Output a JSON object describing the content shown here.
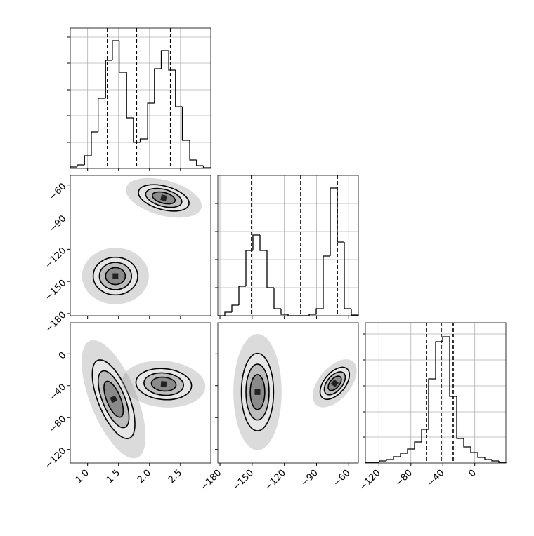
{
  "chart_data": {
    "type": "corner",
    "params": [
      {
        "lim": [
          0.72,
          2.99
        ],
        "ticks": [
          {
            "value": 1,
            "label": "1.0"
          },
          1.5,
          {
            "value": 2,
            "label": "2.0"
          },
          2.5
        ]
      },
      {
        "lim": [
          -182,
          -51
        ],
        "ticks": [
          {
            "value": -180,
            "label": "−180"
          },
          {
            "value": -150,
            "label": "−150"
          },
          {
            "value": -120,
            "label": "−120"
          },
          {
            "value": -90,
            "label": "−90"
          },
          {
            "value": -60,
            "label": "−60"
          }
        ]
      },
      {
        "lim": [
          -137,
          39
        ],
        "ticks": [
          {
            "value": -120,
            "label": "−120"
          },
          {
            "value": -80,
            "label": "−80"
          },
          {
            "value": -40,
            "label": "−40"
          },
          0
        ]
      }
    ],
    "histograms": [
      {
        "param": 0,
        "grid": true,
        "color": "#000000",
        "ylim": [
          0,
          200
        ],
        "yticks": [
          37,
          75,
          112,
          150,
          187
        ],
        "bins": [
          0.72,
          0.83,
          0.95,
          1.06,
          1.17,
          1.29,
          1.4,
          1.51,
          1.63,
          1.74,
          1.85,
          1.97,
          2.08,
          2.19,
          2.31,
          2.42,
          2.53,
          2.65,
          2.76,
          2.87,
          2.99
        ],
        "counts": [
          2,
          5,
          18,
          52,
          100,
          154,
          182,
          137,
          72,
          37,
          42,
          93,
          142,
          168,
          140,
          88,
          40,
          12,
          4,
          1
        ],
        "quantiles": [
          1.32,
          1.79,
          2.34
        ]
      },
      {
        "param": 1,
        "grid": true,
        "color": "#000000",
        "ylim": [
          0,
          200
        ],
        "yticks": [
          40,
          80,
          120,
          160
        ],
        "bins": [
          -182,
          -175.45,
          -168.9,
          -162.35,
          -155.8,
          -149.25,
          -142.7,
          -136.15,
          -129.6,
          -123.05,
          -116.5,
          -109.95,
          -103.4,
          -96.85,
          -90.3,
          -83.75,
          -77.2,
          -70.65,
          -64.1,
          -57.55,
          -51
        ],
        "counts": [
          0,
          5,
          15,
          42,
          93,
          115,
          93,
          40,
          10,
          2,
          0,
          0,
          0,
          2,
          10,
          85,
          182,
          105,
          10,
          1
        ],
        "quantiles": [
          -150.6,
          -104.7,
          -70.6
        ]
      },
      {
        "param": 2,
        "grid": true,
        "color": "#000000",
        "ylim": [
          0,
          200
        ],
        "yticks": [
          37,
          73,
          110,
          147,
          184
        ],
        "bins": [
          -137,
          -128.2,
          -119.4,
          -110.6,
          -101.8,
          -93,
          -84.2,
          -75.4,
          -66.6,
          -57.8,
          -49,
          -40.2,
          -31.4,
          -22.6,
          -13.8,
          -5,
          3.8,
          12.6,
          21.4,
          30.2,
          39
        ],
        "counts": [
          1,
          1,
          3,
          5,
          9,
          14,
          20,
          30,
          48,
          120,
          173,
          180,
          95,
          35,
          23,
          15,
          8,
          5,
          3,
          1
        ],
        "quantiles": [
          -60.4,
          -42,
          -27
        ]
      }
    ],
    "pairs": [
      {
        "x": 0,
        "y": 1,
        "contours": [
          {
            "center": [
              1.45,
              -145
            ],
            "angle": 0,
            "levels": [
              [
                0.36,
                17.6
              ],
              [
                0.26,
                12.7
              ],
              [
                0.16,
                7.9
              ]
            ]
          },
          {
            "center": [
              2.23,
              -72
            ],
            "angle": 15,
            "levels": [
              [
                0.42,
                11
              ],
              [
                0.3,
                7.9
              ],
              [
                0.19,
                5
              ]
            ]
          }
        ]
      },
      {
        "x": 0,
        "y": 2,
        "contours": [
          {
            "center": [
              1.42,
              -57
            ],
            "angle": 68,
            "levels": [
              [
                0.68,
                19.4
              ],
              [
                0.49,
                14
              ],
              [
                0.31,
                8.7
              ]
            ]
          },
          {
            "center": [
              2.23,
              -38
            ],
            "angle": 5,
            "levels": [
              [
                0.45,
                19.4
              ],
              [
                0.32,
                14
              ],
              [
                0.2,
                8.7
              ]
            ]
          }
        ]
      },
      {
        "x": 1,
        "y": 2,
        "contours": [
          {
            "center": [
              -145,
              -48
            ],
            "angle": 0,
            "levels": [
              [
                15,
                48.6
              ],
              [
                10.8,
                35
              ],
              [
                6.8,
                21.9
              ]
            ]
          },
          {
            "center": [
              -73,
              -37
            ],
            "angle": -50,
            "levels": [
              [
                17.7,
                13.2
              ],
              [
                12.7,
                9.5
              ],
              [
                8,
                5.9
              ]
            ]
          }
        ]
      }
    ]
  }
}
